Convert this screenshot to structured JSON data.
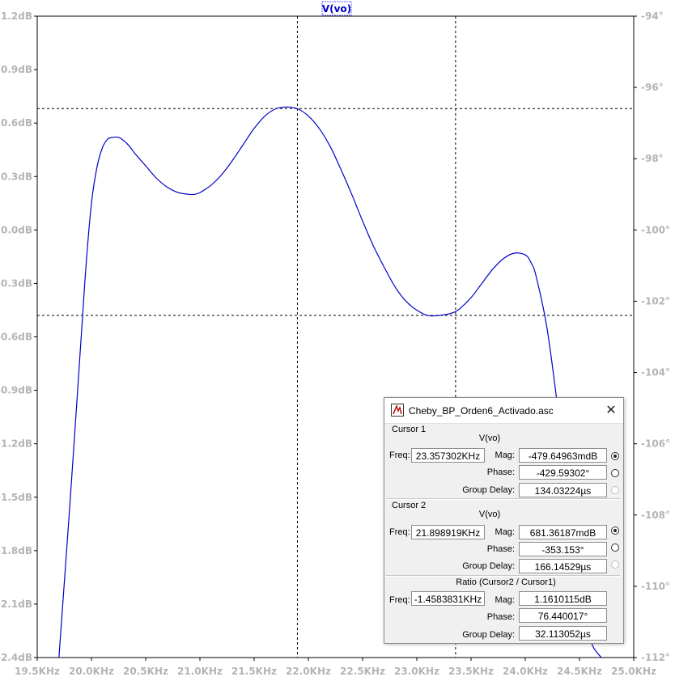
{
  "trace_label": "V(vo)",
  "chart_data": {
    "type": "line",
    "xlabel": "",
    "ylabel": "",
    "x_ticks": [
      "19.5KHz",
      "20.0KHz",
      "20.5KHz",
      "21.0KHz",
      "21.5KHz",
      "22.0KHz",
      "22.5KHz",
      "23.0KHz",
      "23.5KHz",
      "24.0KHz",
      "24.5KHz",
      "25.0KHz"
    ],
    "y_left_ticks": [
      "1.2dB",
      "0.9dB",
      "0.6dB",
      "0.3dB",
      "0.0dB",
      "-0.3dB",
      "-0.6dB",
      "-0.9dB",
      "-1.2dB",
      "-1.5dB",
      "-1.8dB",
      "-2.1dB",
      "-2.4dB"
    ],
    "y_right_ticks": [
      "-94°",
      "-96°",
      "-98°",
      "-100°",
      "-102°",
      "-104°",
      "-106°",
      "-108°",
      "-110°",
      "-112°"
    ],
    "xlim_khz": [
      19.5,
      25.0
    ],
    "ylim_db": [
      -2.4,
      1.2
    ],
    "y_right_lim_deg": [
      -112,
      -94
    ],
    "series": [
      {
        "name": "V(vo)",
        "color": "#0000c8",
        "x": [
          19.7,
          19.8,
          19.9,
          19.95,
          20.0,
          20.05,
          20.1,
          20.15,
          20.2,
          20.25,
          20.3,
          20.35,
          20.4,
          20.5,
          20.6,
          20.7,
          20.8,
          20.9,
          20.95,
          21.0,
          21.1,
          21.2,
          21.3,
          21.4,
          21.5,
          21.6,
          21.7,
          21.8,
          21.9,
          22.0,
          22.1,
          22.2,
          22.3,
          22.4,
          22.5,
          22.6,
          22.7,
          22.8,
          22.9,
          23.0,
          23.1,
          23.2,
          23.3,
          23.35,
          23.4,
          23.5,
          23.6,
          23.7,
          23.8,
          23.9,
          24.0,
          24.05,
          24.1,
          24.2,
          24.3,
          24.4,
          24.5,
          24.6,
          24.7
        ],
        "y": [
          -2.4,
          -1.55,
          -0.65,
          -0.2,
          0.15,
          0.35,
          0.46,
          0.51,
          0.52,
          0.52,
          0.5,
          0.47,
          0.43,
          0.36,
          0.29,
          0.24,
          0.21,
          0.2,
          0.2,
          0.21,
          0.25,
          0.31,
          0.39,
          0.48,
          0.57,
          0.64,
          0.68,
          0.69,
          0.68,
          0.64,
          0.57,
          0.47,
          0.34,
          0.2,
          0.05,
          -0.09,
          -0.21,
          -0.32,
          -0.4,
          -0.45,
          -0.48,
          -0.48,
          -0.47,
          -0.46,
          -0.44,
          -0.38,
          -0.3,
          -0.22,
          -0.16,
          -0.13,
          -0.14,
          -0.18,
          -0.26,
          -0.55,
          -1.0,
          -1.5,
          -2.0,
          -2.3,
          -2.4
        ]
      }
    ],
    "cursor1": {
      "freq_khz": 23.357302,
      "mag_db": -0.47965
    },
    "cursor2": {
      "freq_khz": 21.898919,
      "mag_db": 0.68136
    },
    "grid": false
  },
  "dialog": {
    "title": "Cheby_BP_Orden6_Activado.asc",
    "cursor1": {
      "heading": "Cursor 1",
      "trace": "V(vo)",
      "freq_label": "Freq:",
      "freq": "23.357302KHz",
      "mag_label": "Mag:",
      "mag": "-479.64963mdB",
      "phase_label": "Phase:",
      "phase": "-429.59302°",
      "gd_label": "Group Delay:",
      "gd": "134.03224µs"
    },
    "cursor2": {
      "heading": "Cursor 2",
      "trace": "V(vo)",
      "freq_label": "Freq:",
      "freq": "21.898919KHz",
      "mag_label": "Mag:",
      "mag": "681.36187mdB",
      "phase_label": "Phase:",
      "phase": "-353.153°",
      "gd_label": "Group Delay:",
      "gd": "166.14529µs"
    },
    "ratio": {
      "heading": "Ratio (Cursor2 / Cursor1)",
      "freq_label": "Freq:",
      "freq": "-1.4583831KHz",
      "mag_label": "Mag:",
      "mag": "1.1610115dB",
      "phase_label": "Phase:",
      "phase": "76.440017°",
      "gd_label": "Group Delay:",
      "gd": "32.113052µs"
    }
  }
}
